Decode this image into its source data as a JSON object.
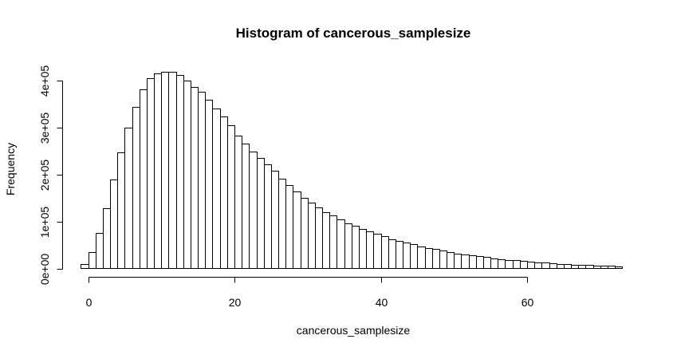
{
  "chart_data": {
    "type": "bar",
    "title": "Histogram of cancerous_samplesize",
    "xlabel": "cancerous_samplesize",
    "ylabel": "Frequency",
    "xlim": [
      0,
      73
    ],
    "ylim": [
      0,
      400000
    ],
    "x_ticks": [
      0,
      20,
      40,
      60
    ],
    "x_tick_labels": [
      "0",
      "20",
      "40",
      "60"
    ],
    "y_ticks": [
      0,
      100000,
      200000,
      300000,
      400000
    ],
    "y_tick_labels": [
      "0e+00",
      "1e+05",
      "2e+05",
      "3e+05",
      "4e+05"
    ],
    "grid": false,
    "bin_width": 1,
    "bin_start": -1,
    "values": [
      9000,
      35000,
      76000,
      128000,
      189000,
      247000,
      300000,
      344000,
      380000,
      404000,
      414000,
      418000,
      418000,
      411000,
      399000,
      386000,
      375000,
      358000,
      340000,
      323000,
      305000,
      282000,
      265000,
      248000,
      235000,
      221000,
      207000,
      191000,
      177000,
      163000,
      150000,
      139000,
      129000,
      120000,
      112000,
      104000,
      96000,
      90000,
      84000,
      78000,
      73000,
      68000,
      62000,
      59000,
      55000,
      51000,
      47000,
      44000,
      41000,
      38000,
      35000,
      32000,
      30000,
      28000,
      26000,
      24000,
      22000,
      20000,
      18500,
      17000,
      15500,
      14200,
      13000,
      12000,
      11000,
      10000,
      9200,
      8400,
      7700,
      7000,
      6400,
      5800,
      5300,
      4800
    ]
  }
}
